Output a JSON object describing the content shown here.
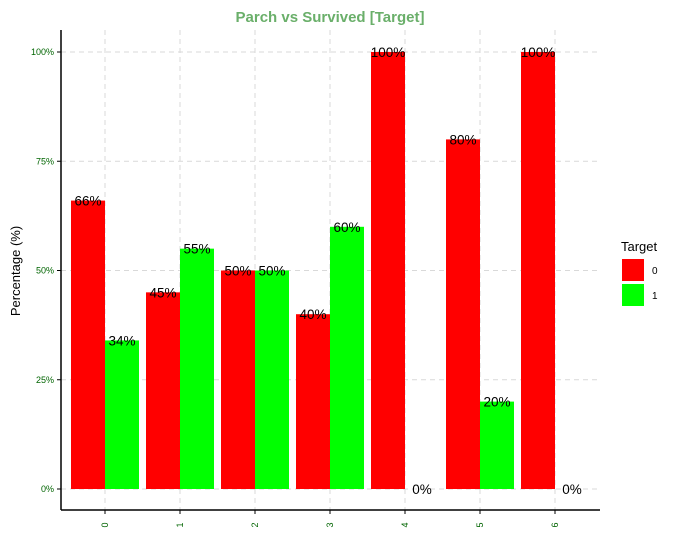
{
  "chart_data": {
    "type": "bar",
    "title": "Parch vs Survived [Target]",
    "xlabel": "",
    "ylabel": "Percentage (%)",
    "categories": [
      "0",
      "1",
      "2",
      "3",
      "4",
      "5",
      "6"
    ],
    "series": [
      {
        "name": "0",
        "color": "#ff0000",
        "values": [
          66,
          45,
          50,
          40,
          100,
          80,
          100
        ],
        "labels": [
          "66%",
          "45%",
          "50%",
          "40%",
          "100%",
          "80%",
          "100%"
        ]
      },
      {
        "name": "1",
        "color": "#00ff00",
        "values": [
          34,
          55,
          50,
          60,
          0,
          20,
          0
        ],
        "labels": [
          "34%",
          "55%",
          "50%",
          "60%",
          "0%",
          "20%",
          "0%"
        ]
      }
    ],
    "ylim": [
      0,
      100
    ],
    "y_ticks": [
      0,
      25,
      50,
      75,
      100
    ],
    "y_tick_labels": [
      "0%",
      "25%",
      "50%",
      "75%",
      "100%"
    ],
    "legend_title": "Target",
    "legend_position": "right",
    "grid": true,
    "title_color": "#6aaf6a",
    "tick_label_color": "#006400"
  }
}
